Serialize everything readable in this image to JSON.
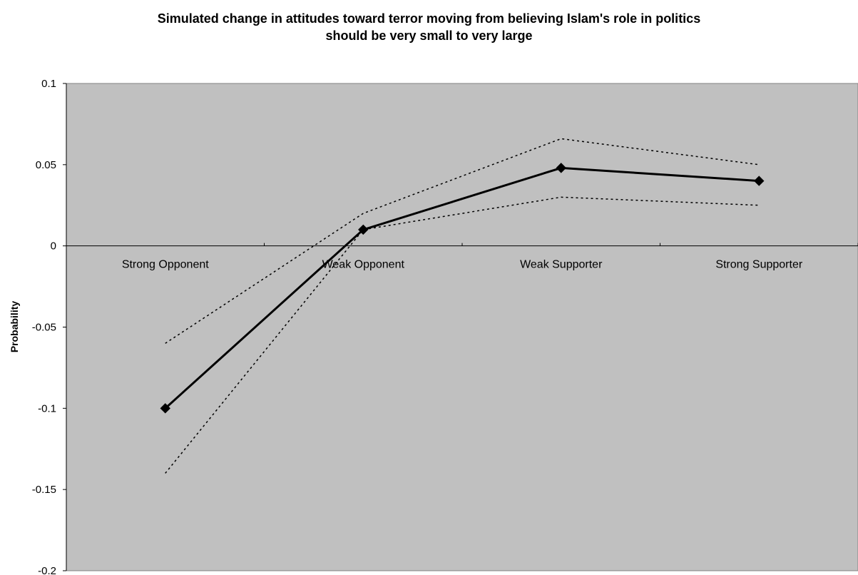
{
  "chart_data": {
    "type": "line",
    "title_lines": [
      "Simulated change in attitudes toward terror moving from believing Islam's role in politics",
      "should be very small to very large"
    ],
    "xlabel": "",
    "ylabel": "Probability",
    "categories": [
      "Strong Opponent",
      "Weak Opponent",
      "Weak Supporter",
      "Strong Supporter"
    ],
    "ylim": [
      -0.2,
      0.1
    ],
    "yticks": [
      0.1,
      0.05,
      0,
      -0.05,
      -0.1,
      -0.15,
      -0.2
    ],
    "ytick_labels": [
      "0.1",
      "0.05",
      "0",
      "-0.05",
      "-0.1",
      "-0.15",
      "-0.2"
    ],
    "grid": false,
    "plot_background": "#c0c0c0",
    "series": [
      {
        "values": [
          -0.1,
          0.01,
          0.048,
          0.04
        ],
        "style": "solid",
        "marker": "diamond",
        "color": "#000000"
      },
      {
        "values": [
          -0.06,
          0.02,
          0.066,
          0.05
        ],
        "style": "dotted",
        "marker": "none",
        "color": "#000000"
      },
      {
        "values": [
          -0.14,
          0.01,
          0.03,
          0.025
        ],
        "style": "dotted",
        "marker": "none",
        "color": "#000000"
      }
    ]
  }
}
